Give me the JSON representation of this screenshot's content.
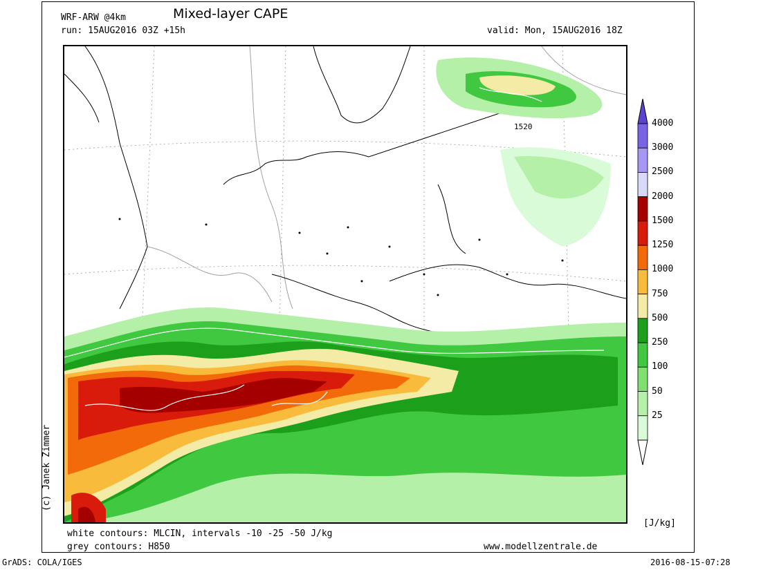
{
  "header": {
    "model": "WRF-ARW @4km",
    "title": "Mixed-layer CAPE",
    "run": "run: 15AUG2016 03Z +15h",
    "valid": "valid: Mon, 15AUG2016 18Z"
  },
  "map": {
    "contour_label": "1520",
    "region_icons": [
      "coastline-icon",
      "border-icon",
      "city-dot-icon"
    ]
  },
  "footer": {
    "note1": "white contours: MLCIN, intervals -10 -25 -50 J/kg",
    "note2": "grey contours: H850",
    "website": "www.modellzentrale.de",
    "software": "GrADS: COLA/IGES",
    "timestamp": "2016-08-15-07:28"
  },
  "credit": "(c) Janek Zimmer",
  "legend": {
    "unit": "[J/kg]",
    "levels": [
      {
        "label": "25",
        "color": "#dafbd7"
      },
      {
        "label": "50",
        "color": "#b4f0a8"
      },
      {
        "label": "100",
        "color": "#7fe070"
      },
      {
        "label": "250",
        "color": "#40c840"
      },
      {
        "label": "500",
        "color": "#1ca01c"
      },
      {
        "label": "750",
        "color": "#f3eba6"
      },
      {
        "label": "1000",
        "color": "#f9bb3c"
      },
      {
        "label": "1250",
        "color": "#f26a0a"
      },
      {
        "label": "1500",
        "color": "#d81b0a"
      },
      {
        "label": "2000",
        "color": "#a40000"
      },
      {
        "label": "2500",
        "color": "#d9d9fb"
      },
      {
        "label": "3000",
        "color": "#a797f5"
      },
      {
        "label": "4000",
        "color": "#7964e6"
      }
    ],
    "top_color": "#5a45d0"
  }
}
